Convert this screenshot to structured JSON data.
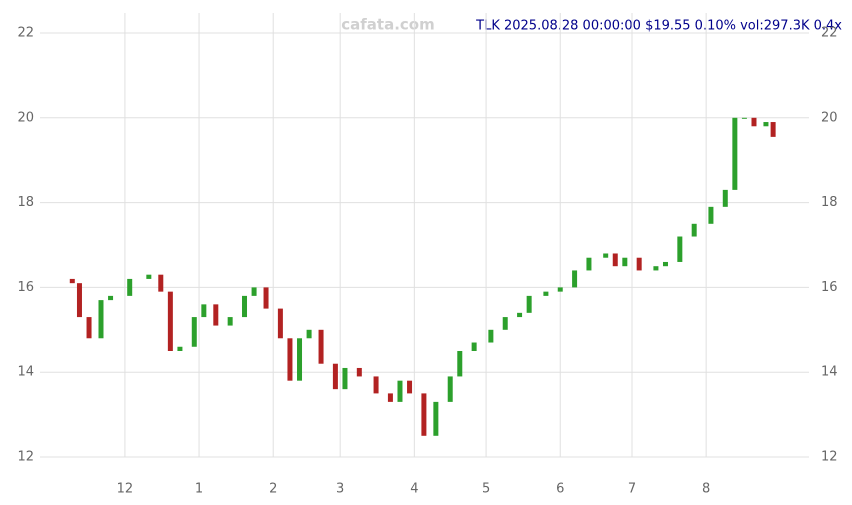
{
  "chart_data": {
    "type": "candlestick",
    "title": "TLK 2025.08.28 00:00:00 $19.55 0.10% vol:297.3K 0.4x",
    "watermark": "cafata.com",
    "x": [
      8,
      11,
      15,
      20,
      24,
      32,
      40,
      45,
      49,
      53,
      59,
      63,
      68,
      74,
      80,
      84,
      89,
      95,
      99,
      103,
      107,
      112,
      118,
      122,
      128,
      135,
      141,
      145,
      149,
      155,
      160,
      166,
      170,
      176,
      183,
      189,
      195,
      199,
      206,
      212,
      218,
      224,
      231,
      235,
      239,
      245,
      252,
      256,
      262,
      268,
      275,
      281,
      285,
      289,
      293,
      298,
      301
    ],
    "open": [
      16.2,
      16.1,
      15.3,
      14.8,
      15.7,
      15.8,
      16.2,
      16.3,
      15.9,
      14.5,
      14.6,
      15.3,
      15.6,
      15.1,
      15.3,
      15.8,
      16.0,
      15.5,
      14.8,
      13.8,
      14.8,
      15.0,
      14.2,
      13.6,
      14.1,
      13.9,
      13.5,
      13.3,
      13.8,
      13.5,
      12.5,
      13.3,
      13.9,
      14.5,
      14.7,
      15.0,
      15.3,
      15.4,
      15.8,
      15.9,
      16.0,
      16.4,
      16.7,
      16.8,
      16.5,
      16.7,
      16.4,
      16.5,
      16.6,
      17.2,
      17.5,
      17.9,
      18.3,
      20.0,
      20.0,
      19.8,
      19.9
    ],
    "close": [
      16.1,
      15.3,
      14.8,
      15.7,
      15.8,
      16.2,
      16.3,
      15.9,
      14.5,
      14.6,
      15.3,
      15.6,
      15.1,
      15.3,
      15.8,
      16.0,
      15.5,
      14.8,
      13.8,
      14.8,
      15.0,
      14.2,
      13.6,
      14.1,
      13.9,
      13.5,
      13.3,
      13.8,
      13.5,
      12.5,
      13.3,
      13.9,
      14.5,
      14.7,
      15.0,
      15.3,
      15.4,
      15.8,
      15.9,
      16.0,
      16.4,
      16.7,
      16.8,
      16.5,
      16.7,
      16.4,
      16.5,
      16.6,
      17.2,
      17.5,
      17.9,
      18.3,
      20.0,
      20.0,
      19.8,
      19.9,
      19.55
    ],
    "up_color": "#2ca02c",
    "down_color": "#b22222",
    "xlim": [
      -5.5,
      316
    ],
    "xticks": [
      {
        "value": 30,
        "label": "12"
      },
      {
        "value": 61,
        "label": "1"
      },
      {
        "value": 92,
        "label": "2"
      },
      {
        "value": 120,
        "label": "3"
      },
      {
        "value": 151,
        "label": "4"
      },
      {
        "value": 181,
        "label": "5"
      },
      {
        "value": 212,
        "label": "6"
      },
      {
        "value": 242,
        "label": "7"
      },
      {
        "value": 273,
        "label": "8"
      }
    ],
    "ylim": [
      12,
      22
    ],
    "yticks": [
      12,
      14,
      16,
      18,
      20,
      22
    ],
    "grid": true
  }
}
